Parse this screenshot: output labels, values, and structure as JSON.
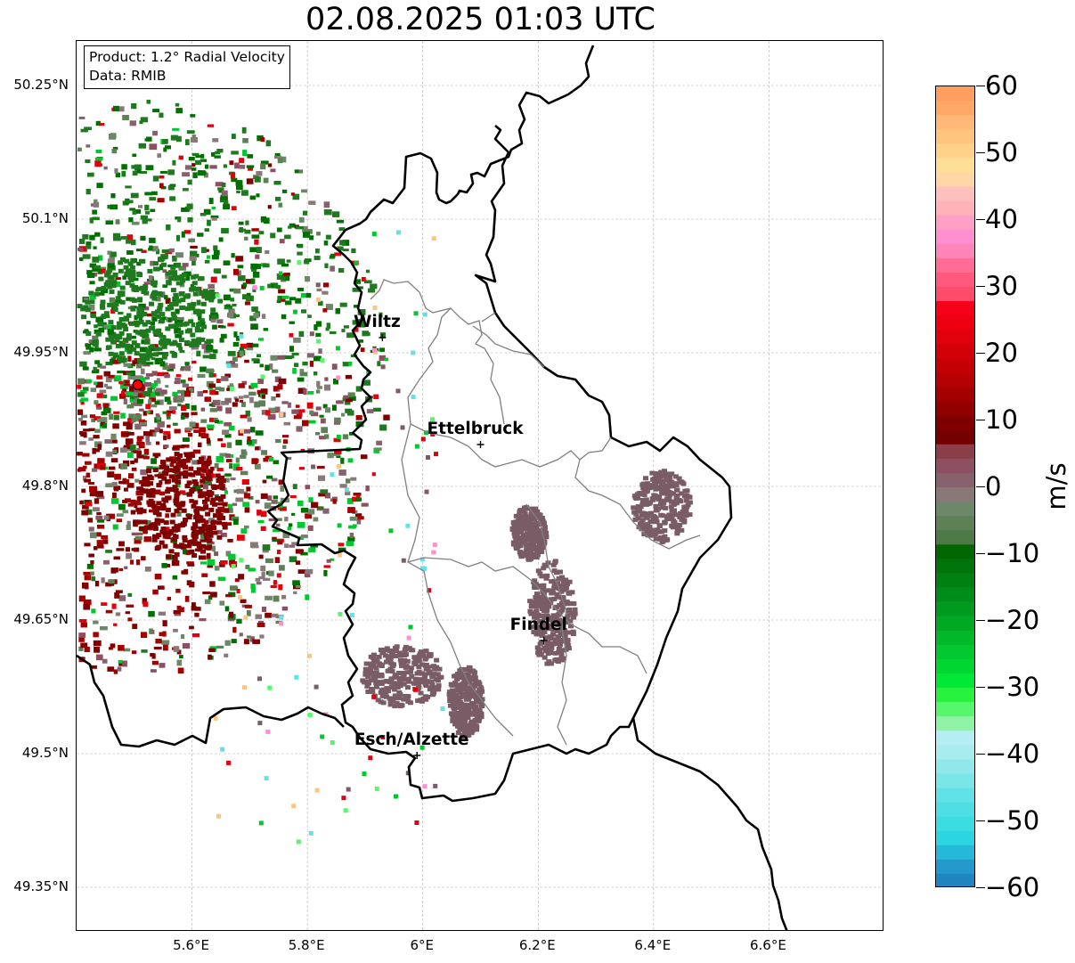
{
  "title": "02.08.2025 01:03 UTC",
  "info": {
    "product": "Product: 1.2° Radial Velocity",
    "data": "Data: RMIB"
  },
  "map": {
    "lon_range": [
      5.4,
      6.8
    ],
    "lat_range": [
      49.3,
      50.3
    ],
    "y_ticks": [
      {
        "lat": 50.25,
        "label": "50.25°N"
      },
      {
        "lat": 50.1,
        "label": "50.1°N"
      },
      {
        "lat": 49.95,
        "label": "49.95°N"
      },
      {
        "lat": 49.8,
        "label": "49.8°N"
      },
      {
        "lat": 49.65,
        "label": "49.65°N"
      },
      {
        "lat": 49.5,
        "label": "49.5°N"
      },
      {
        "lat": 49.35,
        "label": "49.35°N"
      }
    ],
    "x_ticks": [
      {
        "lon": 5.6,
        "label": "5.6°E"
      },
      {
        "lon": 5.8,
        "label": "5.8°E"
      },
      {
        "lon": 6.0,
        "label": "6°E"
      },
      {
        "lon": 6.2,
        "label": "6.2°E"
      },
      {
        "lon": 6.4,
        "label": "6.4°E"
      },
      {
        "lon": 6.6,
        "label": "6.6°E"
      }
    ],
    "cities": [
      {
        "name": "Wiltz",
        "lon": 5.93,
        "lat": 49.967
      },
      {
        "name": "Ettelbruck",
        "lon": 6.1,
        "lat": 49.847
      },
      {
        "name": "Findel",
        "lon": 6.21,
        "lat": 49.627
      },
      {
        "name": "Esch/Alzette",
        "lon": 5.99,
        "lat": 49.498
      }
    ],
    "radar_site": {
      "lon": 5.506,
      "lat": 49.914
    },
    "echo_clusters": [
      {
        "lon": 5.96,
        "lat": 49.59,
        "r_lon": 0.07,
        "r_lat": 0.035,
        "color": "#7a5c66"
      },
      {
        "lon": 6.22,
        "lat": 49.66,
        "r_lon": 0.04,
        "r_lat": 0.06,
        "color": "#7a5c66"
      },
      {
        "lon": 6.41,
        "lat": 49.78,
        "r_lon": 0.05,
        "r_lat": 0.04,
        "color": "#7a5c66"
      },
      {
        "lon": 6.07,
        "lat": 49.56,
        "r_lon": 0.03,
        "r_lat": 0.04,
        "color": "#7a5c66"
      },
      {
        "lon": 6.18,
        "lat": 49.75,
        "r_lon": 0.03,
        "r_lat": 0.03,
        "color": "#7a5c66"
      },
      {
        "lon": 5.58,
        "lat": 49.78,
        "r_lon": 0.08,
        "r_lat": 0.06,
        "color": "#800000"
      },
      {
        "lon": 5.52,
        "lat": 50.0,
        "r_lon": 0.12,
        "r_lat": 0.06,
        "color": "#1f7a1f"
      }
    ]
  },
  "colorbar": {
    "unit": "m/s",
    "min": -60,
    "max": 60,
    "ticks": [
      {
        "value": 60,
        "label": "60"
      },
      {
        "value": 50,
        "label": "50"
      },
      {
        "value": 40,
        "label": "40"
      },
      {
        "value": 30,
        "label": "30"
      },
      {
        "value": 20,
        "label": "20"
      },
      {
        "value": 10,
        "label": "10"
      },
      {
        "value": 0,
        "label": "0"
      },
      {
        "value": -10,
        "label": "−10"
      },
      {
        "value": -20,
        "label": "−20"
      },
      {
        "value": -30,
        "label": "−30"
      },
      {
        "value": -40,
        "label": "−40"
      },
      {
        "value": -50,
        "label": "−50"
      },
      {
        "value": -60,
        "label": "−60"
      }
    ],
    "colors_top_to_bottom": [
      "#ff9e5e",
      "#ffa866",
      "#ffb877",
      "#ffc47e",
      "#ffd189",
      "#ffdf95",
      "#ffd7a6",
      "#ffc0bd",
      "#ffb3b8",
      "#ff9fc6",
      "#ff8fd0",
      "#ff84b8",
      "#ff6d97",
      "#ff5a7d",
      "#ff4a6a",
      "#f7001a",
      "#ee0010",
      "#e2000c",
      "#d40008",
      "#c50005",
      "#b60003",
      "#a40000",
      "#920000",
      "#800000",
      "#750000",
      "#8a3f48",
      "#8c5060",
      "#85626e",
      "#887878",
      "#6d8868",
      "#5e8055",
      "#4f7a48",
      "#006600",
      "#00730a",
      "#008010",
      "#008c18",
      "#009a1e",
      "#00a824",
      "#00b82a",
      "#00c82e",
      "#00d632",
      "#00e836",
      "#28f33c",
      "#55f86a",
      "#8ef4a4",
      "#b4eef2",
      "#a9ecee",
      "#90e8ea",
      "#7ae6e8",
      "#62e2e6",
      "#4ddfe3",
      "#3adde1",
      "#2cd6e0",
      "#26b8d8",
      "#2298cc",
      "#1f84c0"
    ]
  }
}
